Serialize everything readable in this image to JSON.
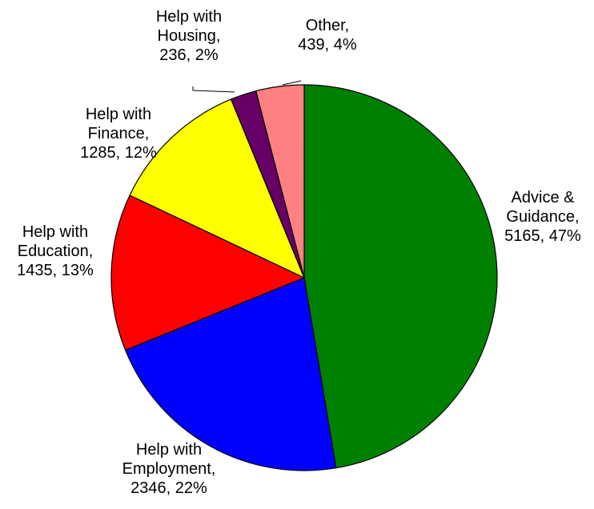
{
  "chart_data": {
    "type": "pie",
    "title": "",
    "start_angle_deg": 0,
    "direction": "clockwise",
    "slices": [
      {
        "category": "Advice & Guidance",
        "label_lines": [
          "Advice &",
          "Guidance,",
          "5165, 47%"
        ],
        "value": 5165,
        "percent": "47%",
        "color": "#008000"
      },
      {
        "category": "Help with Employment",
        "label_lines": [
          "Help with",
          "Employment,",
          "2346, 22%"
        ],
        "value": 2346,
        "percent": "22%",
        "color": "#0000FF"
      },
      {
        "category": "Help with Education",
        "label_lines": [
          "Help with",
          "Education,",
          "1435, 13%"
        ],
        "value": 1435,
        "percent": "13%",
        "color": "#FF0000"
      },
      {
        "category": "Help with Finance",
        "label_lines": [
          "Help with",
          "Finance,",
          "1285, 12%"
        ],
        "value": 1285,
        "percent": "12%",
        "color": "#FFFF00"
      },
      {
        "category": "Help with Housing",
        "label_lines": [
          "Help with",
          "Housing,",
          "236, 2%"
        ],
        "value": 236,
        "percent": "2%",
        "color": "#660066"
      },
      {
        "category": "Other",
        "label_lines": [
          "Other,",
          "439, 4%"
        ],
        "value": 439,
        "percent": "4%",
        "color": "#FF8080"
      }
    ]
  }
}
